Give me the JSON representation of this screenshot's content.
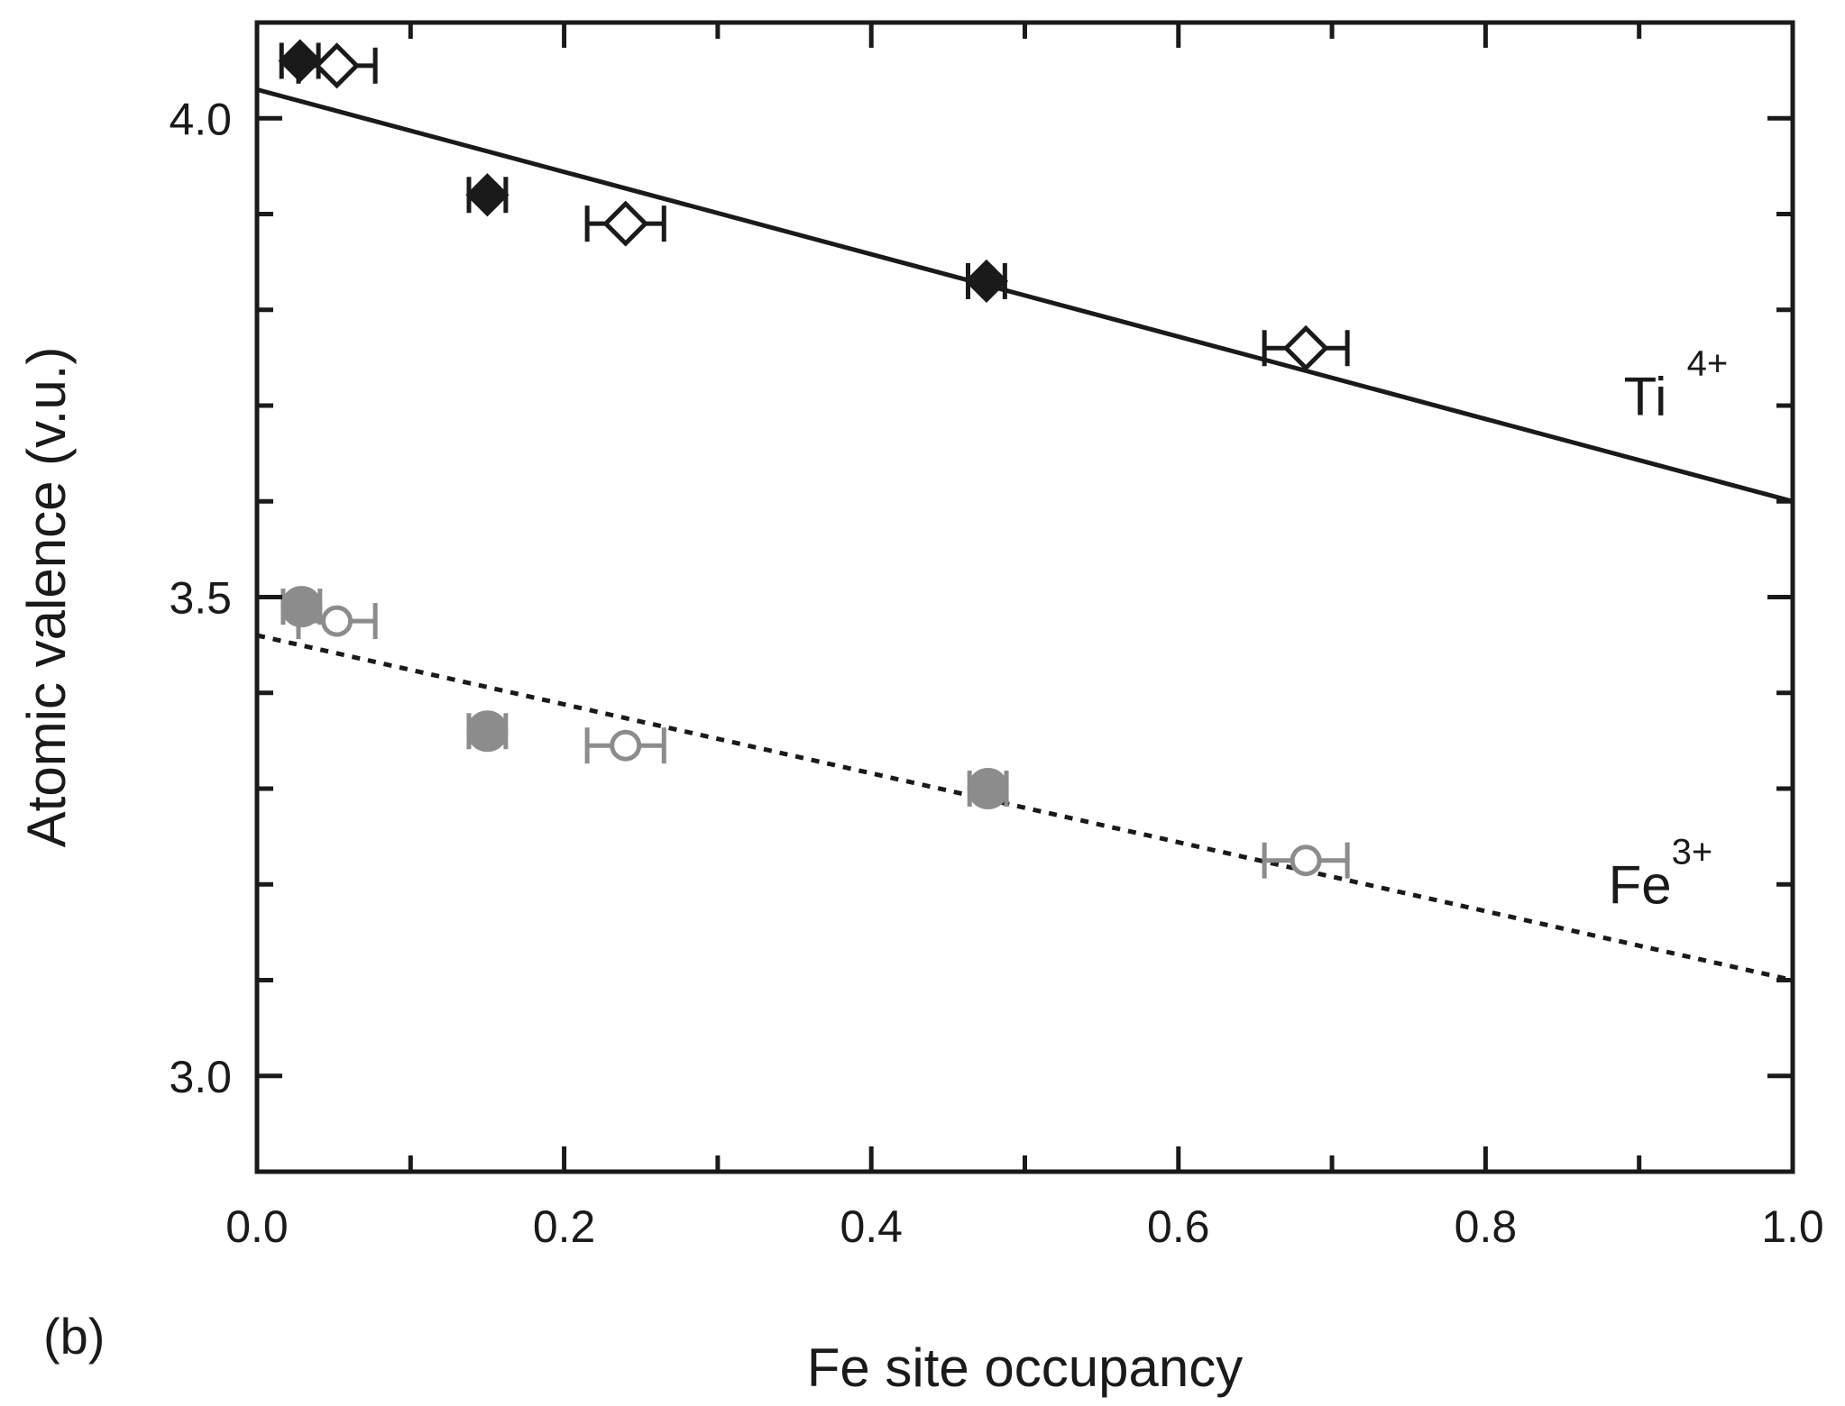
{
  "panel_label": "(b)",
  "chart_data": {
    "type": "scatter",
    "title": "",
    "xlabel": "Fe site occupancy",
    "ylabel": "Atomic valence (v.u.)",
    "xlim": [
      0.0,
      1.0
    ],
    "ylim": [
      2.9,
      4.1
    ],
    "x_ticks": [
      "0.0",
      "0.2",
      "0.4",
      "0.6",
      "0.8",
      "1.0"
    ],
    "y_ticks": [
      "3.0",
      "3.5",
      "4.0"
    ],
    "grid": false,
    "fit_lines": [
      {
        "label": "Ti",
        "superscript": "4+",
        "style": "solid",
        "color": "#1a1a1a",
        "x": [
          0.0,
          1.0
        ],
        "y": [
          4.03,
          3.6
        ],
        "label_x": 0.89,
        "label_y": 3.69
      },
      {
        "label": "Fe",
        "superscript": "3+",
        "style": "dotted",
        "color": "#1a1a1a",
        "x": [
          0.0,
          1.0
        ],
        "y": [
          3.46,
          3.1
        ],
        "label_x": 0.88,
        "label_y": 3.18
      }
    ],
    "series": [
      {
        "marker": "diamond",
        "filled": true,
        "color": "#1a1a1a",
        "points": [
          {
            "x": 0.028,
            "y": 4.06,
            "xerr": 0.012
          },
          {
            "x": 0.15,
            "y": 3.92,
            "xerr": 0.012
          },
          {
            "x": 0.475,
            "y": 3.83,
            "xerr": 0.012
          }
        ]
      },
      {
        "marker": "diamond",
        "filled": false,
        "color": "#1a1a1a",
        "points": [
          {
            "x": 0.052,
            "y": 4.055,
            "xerr": 0.025
          },
          {
            "x": 0.24,
            "y": 3.89,
            "xerr": 0.025
          },
          {
            "x": 0.683,
            "y": 3.76,
            "xerr": 0.027
          }
        ]
      },
      {
        "marker": "circle",
        "filled": true,
        "color": "#8c8c8c",
        "points": [
          {
            "x": 0.029,
            "y": 3.49,
            "xerr": 0.012
          },
          {
            "x": 0.15,
            "y": 3.36,
            "xerr": 0.012
          },
          {
            "x": 0.476,
            "y": 3.3,
            "xerr": 0.012
          }
        ]
      },
      {
        "marker": "circle",
        "filled": false,
        "color": "#8c8c8c",
        "points": [
          {
            "x": 0.052,
            "y": 3.475,
            "xerr": 0.025
          },
          {
            "x": 0.24,
            "y": 3.345,
            "xerr": 0.025
          },
          {
            "x": 0.683,
            "y": 3.225,
            "xerr": 0.027
          }
        ]
      }
    ]
  }
}
